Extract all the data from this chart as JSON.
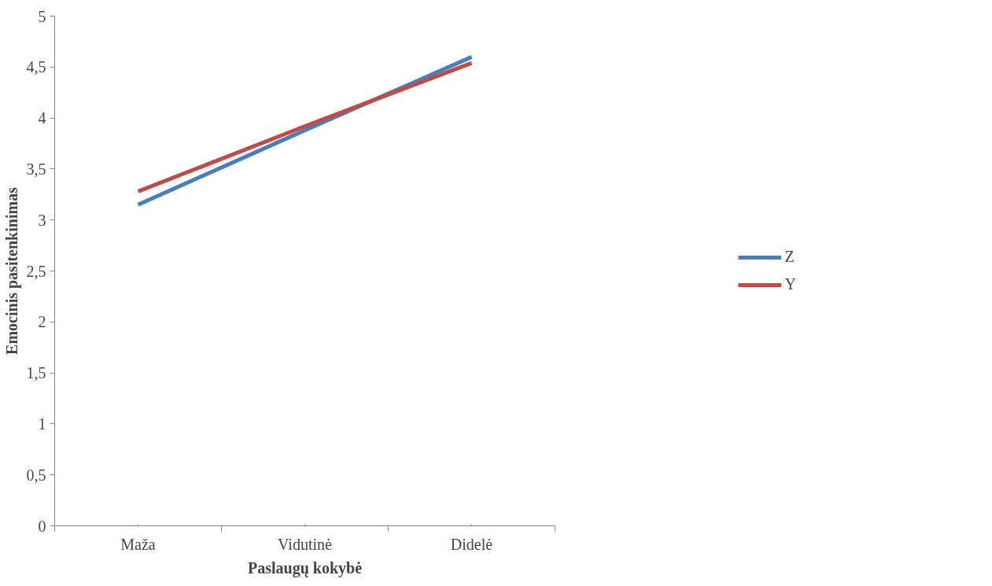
{
  "chart_data": {
    "type": "line",
    "xlabel": "Paslaugų kokybė",
    "ylabel": "Emocinis pasitenkinimas",
    "categories": [
      "Maža",
      "Vidutinė",
      "Didelė"
    ],
    "series": [
      {
        "name": "Z",
        "color": "#4a7ebb",
        "values": [
          3.15,
          3.88,
          4.6
        ]
      },
      {
        "name": "Y",
        "color": "#be4b48",
        "values": [
          3.28,
          3.92,
          4.54
        ]
      }
    ],
    "ylim": [
      0,
      5
    ],
    "yticks": [
      0,
      {
        "value": 0.5,
        "label": "0,5"
      },
      1,
      {
        "value": 1.5,
        "label": "1,5"
      },
      2,
      {
        "value": 2.5,
        "label": "2,5"
      },
      3,
      {
        "value": 3.5,
        "label": "3,5"
      },
      4,
      {
        "value": 4.5,
        "label": "4,5"
      },
      5
    ],
    "grid": false,
    "legend": "right",
    "marker": "none",
    "line_style": "solid"
  }
}
